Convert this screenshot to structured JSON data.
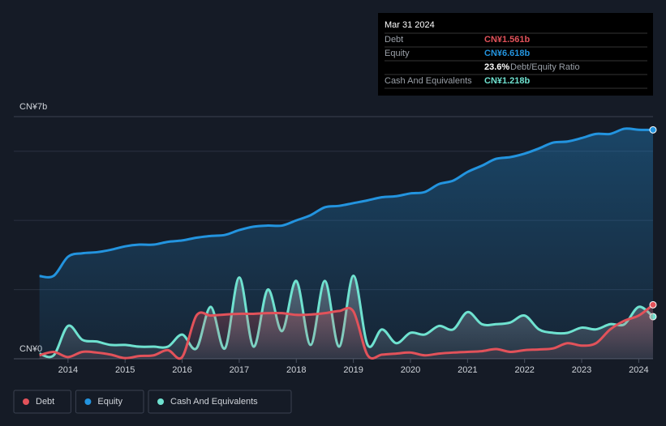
{
  "chart_data": {
    "type": "line",
    "x": [
      2013.5,
      2013.75,
      2014,
      2014.25,
      2014.5,
      2014.75,
      2015,
      2015.25,
      2015.5,
      2015.75,
      2016,
      2016.25,
      2016.5,
      2016.75,
      2017,
      2017.25,
      2017.5,
      2017.75,
      2018,
      2018.25,
      2018.5,
      2018.75,
      2019,
      2019.25,
      2019.5,
      2019.75,
      2020,
      2020.25,
      2020.5,
      2020.75,
      2021,
      2021.25,
      2021.5,
      2021.75,
      2022,
      2022.25,
      2022.5,
      2022.75,
      2023,
      2023.25,
      2023.5,
      2023.75,
      2024,
      2024.25
    ],
    "series": [
      {
        "name": "Debt",
        "color": "#e2525a",
        "values": [
          0.1,
          0.2,
          0.05,
          0.2,
          0.18,
          0.12,
          0.02,
          0.08,
          0.1,
          0.25,
          0.05,
          1.25,
          1.25,
          1.28,
          1.3,
          1.3,
          1.32,
          1.32,
          1.27,
          1.28,
          1.32,
          1.38,
          1.37,
          0.1,
          0.12,
          0.15,
          0.18,
          0.1,
          0.15,
          0.18,
          0.2,
          0.22,
          0.28,
          0.2,
          0.25,
          0.27,
          0.3,
          0.45,
          0.38,
          0.45,
          0.85,
          1.1,
          1.25,
          1.561
        ]
      },
      {
        "name": "Equity",
        "color": "#2394df",
        "values": [
          2.39,
          2.4,
          2.95,
          3.05,
          3.08,
          3.15,
          3.25,
          3.3,
          3.3,
          3.38,
          3.42,
          3.5,
          3.55,
          3.58,
          3.72,
          3.82,
          3.85,
          3.85,
          4.0,
          4.15,
          4.38,
          4.42,
          4.5,
          4.58,
          4.67,
          4.7,
          4.78,
          4.82,
          5.05,
          5.15,
          5.4,
          5.58,
          5.78,
          5.83,
          5.93,
          6.08,
          6.25,
          6.28,
          6.38,
          6.5,
          6.5,
          6.65,
          6.62,
          6.618
        ]
      },
      {
        "name": "Cash And Equivalents",
        "color": "#6fe2d0",
        "values": [
          0.15,
          0.1,
          0.95,
          0.55,
          0.5,
          0.4,
          0.4,
          0.35,
          0.35,
          0.35,
          0.7,
          0.3,
          1.5,
          0.3,
          2.35,
          0.35,
          2.0,
          0.8,
          2.25,
          0.4,
          2.25,
          0.35,
          2.4,
          0.4,
          0.85,
          0.45,
          0.75,
          0.7,
          0.95,
          0.85,
          1.35,
          1.0,
          1.0,
          1.05,
          1.25,
          0.85,
          0.75,
          0.75,
          0.9,
          0.85,
          1.0,
          1.0,
          1.5,
          1.218
        ]
      }
    ],
    "xlim": [
      2013.05,
      2024.25
    ],
    "xticks": [
      2014,
      2015,
      2016,
      2017,
      2018,
      2019,
      2020,
      2021,
      2022,
      2023,
      2024
    ],
    "ylim": [
      0,
      7
    ],
    "yticks": [
      {
        "value": 0,
        "label": "CN¥0"
      },
      {
        "value": 7,
        "label": "CN¥7b"
      }
    ],
    "ygrid": [
      2,
      4,
      6
    ],
    "legend": "bottom-left",
    "tooltip": {
      "date": "Mar 31 2024",
      "rows": [
        {
          "label": "Debt",
          "value": "CN¥1.561b"
        },
        {
          "label": "Equity",
          "value": "CN¥6.618b"
        },
        {
          "value": "23.6%",
          "note": "Debt/Equity Ratio"
        },
        {
          "label": "Cash And Equivalents",
          "value": "CN¥1.218b"
        }
      ]
    }
  }
}
